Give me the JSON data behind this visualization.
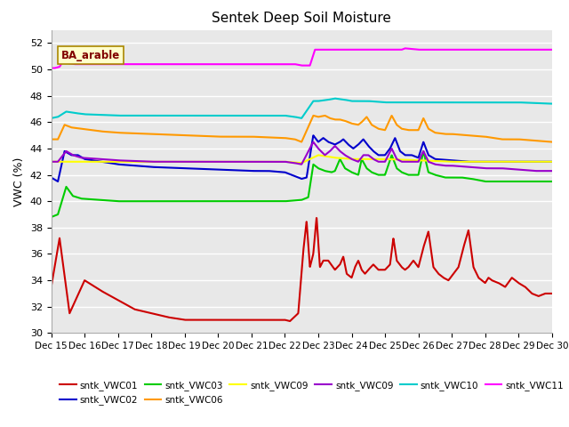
{
  "title": "Sentek Deep Soil Moisture",
  "ylabel": "VWC (%)",
  "annotation": "BA_arable",
  "ylim": [
    30,
    53
  ],
  "yticks": [
    30,
    32,
    34,
    36,
    38,
    40,
    42,
    44,
    46,
    48,
    50,
    52
  ],
  "xtick_labels": [
    "Dec 15",
    "Dec 16",
    "Dec 17",
    "Dec 18",
    "Dec 19",
    "Dec 20",
    "Dec 21",
    "Dec 22",
    "Dec 23",
    "Dec 24",
    "Dec 25",
    "Dec 26",
    "Dec 27",
    "Dec 28",
    "Dec 29",
    "Dec 30"
  ],
  "bg_color": "#e8e8e8",
  "grid_color": "#ffffff",
  "series": {
    "sntk_VWC01": {
      "color": "#cc0000"
    },
    "sntk_VWC02": {
      "color": "#0000cc"
    },
    "sntk_VWC03": {
      "color": "#00cc00"
    },
    "sntk_VWC06": {
      "color": "#ff9900"
    },
    "sntk_VWC09y": {
      "color": "#ffff00"
    },
    "sntk_VWC09p": {
      "color": "#9900cc"
    },
    "sntk_VWC10": {
      "color": "#00cccc"
    },
    "sntk_VWC11": {
      "color": "#ff00ff"
    }
  }
}
